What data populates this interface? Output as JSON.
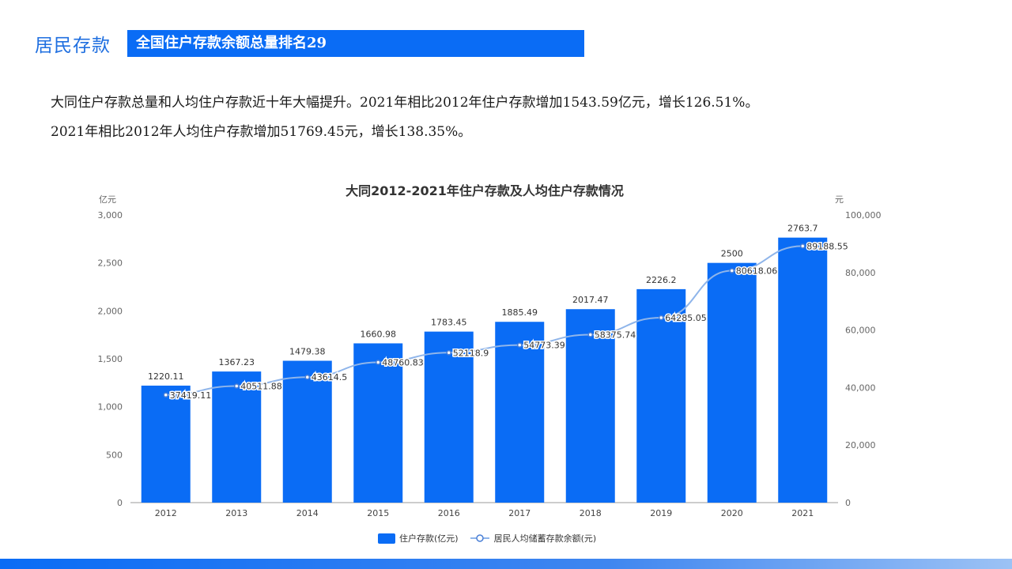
{
  "header": {
    "section_title": "居民存款",
    "banner": "全国住户存款余额总量排名29"
  },
  "paragraphs": [
    "大同住户存款总量和人均住户存款近十年大幅提升。2021年相比2012年住户存款增加1543.59亿元，增长126.51%。",
    "2021年相比2012年人均住户存款增加51769.45元，增长138.35%。"
  ],
  "colors": {
    "bar": "#0a6cf5",
    "line": "#8fb5ea",
    "point": "#4a7fd6"
  },
  "chart_data": {
    "type": "bar",
    "title": "大同2012-2021年住户存款及人均住户存款情况",
    "categories": [
      "2012",
      "2013",
      "2014",
      "2015",
      "2016",
      "2017",
      "2018",
      "2019",
      "2020",
      "2021"
    ],
    "y_left_unit": "亿元",
    "y_right_unit": "元",
    "y_left_ticks": [
      "0",
      "500",
      "1,000",
      "1,500",
      "2,000",
      "2,500",
      "3,000"
    ],
    "y_right_ticks": [
      "0",
      "20,000",
      "40,000",
      "60,000",
      "80,000",
      "100,000"
    ],
    "y_left_range": [
      0,
      3000
    ],
    "y_right_range": [
      0,
      100000
    ],
    "series": [
      {
        "name": "住户存款(亿元)",
        "type": "bar",
        "axis": "left",
        "values": [
          1220.11,
          1367.23,
          1479.38,
          1660.98,
          1783.45,
          1885.49,
          2017.47,
          2226.2,
          2500,
          2763.7
        ]
      },
      {
        "name": "居民人均储蓄存款余额(元)",
        "type": "line",
        "axis": "right",
        "values": [
          37419.11,
          40511.88,
          43614.5,
          48760.83,
          52118.9,
          54773.39,
          58375.74,
          64285.05,
          80618.06,
          89188.55
        ]
      }
    ],
    "grid": false,
    "legend": "bottom"
  }
}
